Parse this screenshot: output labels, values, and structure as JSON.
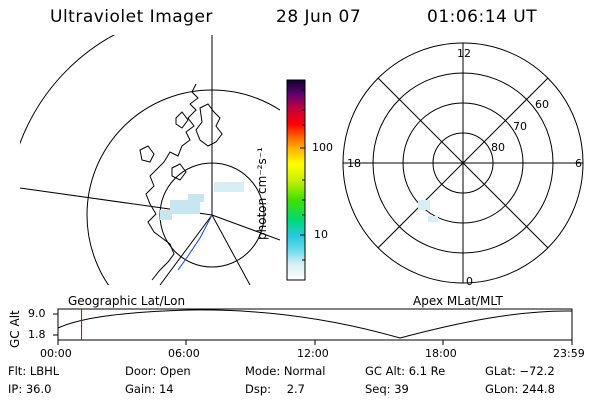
{
  "header": {
    "title": "Ultraviolet Imager",
    "date": "28 Jun 07",
    "time": "01:06:14 UT"
  },
  "colorbar": {
    "axis_label": "photon cm⁻²s⁻¹",
    "ticks": [
      "100",
      "10"
    ],
    "scale": "log"
  },
  "geo_panel": {
    "caption": "Geographic Lat/Lon"
  },
  "polar_panel": {
    "caption": "Apex MLat/MLT",
    "mlt_labels": {
      "top": "12",
      "left": "18",
      "right": "6",
      "bottom": "0"
    },
    "lat_labels": [
      "60",
      "70",
      "80"
    ]
  },
  "altitude_panel": {
    "ylabel": "GC Alt",
    "yticks": [
      "9.0",
      "1.8"
    ],
    "xticks": [
      "00:00",
      "06:00",
      "12:00",
      "18:00",
      "23:59"
    ],
    "current_time_marker_hours": 1.1
  },
  "info": {
    "flt": {
      "label": "Flt:",
      "value": "LBHL"
    },
    "ip": {
      "label": "IP:",
      "value": "36.0"
    },
    "door": {
      "label": "Door:",
      "value": "Open"
    },
    "gain": {
      "label": "Gain:",
      "value": "14"
    },
    "mode": {
      "label": "Mode:",
      "value": "Normal"
    },
    "dsp": {
      "label": "Dsp:",
      "value": "2.7"
    },
    "gcalt": {
      "label": "GC Alt:",
      "value": "6.1 Re"
    },
    "seq": {
      "label": "Seq:",
      "value": "39"
    },
    "glat": {
      "label": "GLat:",
      "value": "−72.2"
    },
    "glon": {
      "label": "GLon:",
      "value": "244.8"
    }
  },
  "colors": {
    "marker": "#c00000",
    "coastline": "#000000",
    "aurora": "#c8e6f0",
    "meridian": "#1e3cc8"
  }
}
